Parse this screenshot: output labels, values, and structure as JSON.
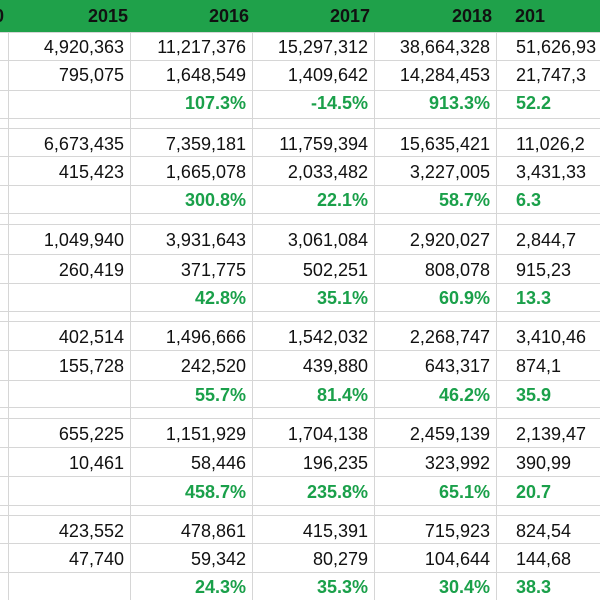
{
  "header": {
    "years": [
      "2015",
      "2016",
      "2017",
      "2018",
      "201"
    ],
    "left_edge": "0"
  },
  "groups": [
    {
      "row1": [
        "4,920,363",
        "11,217,376",
        "15,297,312",
        "38,664,328",
        "51,626,93"
      ],
      "row2": [
        "795,075",
        "1,648,549",
        "1,409,642",
        "14,284,453",
        "21,747,3"
      ],
      "pct": [
        "",
        "107.3%",
        "-14.5%",
        "913.3%",
        "52.2"
      ]
    },
    {
      "row1": [
        "6,673,435",
        "7,359,181",
        "11,759,394",
        "15,635,421",
        "11,026,2"
      ],
      "row2": [
        "415,423",
        "1,665,078",
        "2,033,482",
        "3,227,005",
        "3,431,33"
      ],
      "pct": [
        "",
        "300.8%",
        "22.1%",
        "58.7%",
        "6.3"
      ]
    },
    {
      "row1": [
        "1,049,940",
        "3,931,643",
        "3,061,084",
        "2,920,027",
        "2,844,7"
      ],
      "row2": [
        "260,419",
        "371,775",
        "502,251",
        "808,078",
        "915,23"
      ],
      "pct": [
        "",
        "42.8%",
        "35.1%",
        "60.9%",
        "13.3"
      ]
    },
    {
      "row1": [
        "402,514",
        "1,496,666",
        "1,542,032",
        "2,268,747",
        "3,410,46"
      ],
      "row2": [
        "155,728",
        "242,520",
        "439,880",
        "643,317",
        "874,1"
      ],
      "pct": [
        "",
        "55.7%",
        "81.4%",
        "46.2%",
        "35.9"
      ]
    },
    {
      "row1": [
        "655,225",
        "1,151,929",
        "1,704,138",
        "2,459,139",
        "2,139,47"
      ],
      "row2": [
        "10,461",
        "58,446",
        "196,235",
        "323,992",
        "390,99"
      ],
      "pct": [
        "",
        "458.7%",
        "235.8%",
        "65.1%",
        "20.7"
      ]
    },
    {
      "row1": [
        "423,552",
        "478,861",
        "415,391",
        "715,923",
        "824,54"
      ],
      "row2": [
        "47,740",
        "59,342",
        "80,279",
        "104,644",
        "144,68"
      ],
      "pct": [
        "",
        "24.3%",
        "35.3%",
        "30.4%",
        "38.3"
      ]
    }
  ],
  "colors": {
    "header_bg": "#1fa14a",
    "percent_text": "#1aa04a",
    "grid": "#d6d6d6"
  }
}
